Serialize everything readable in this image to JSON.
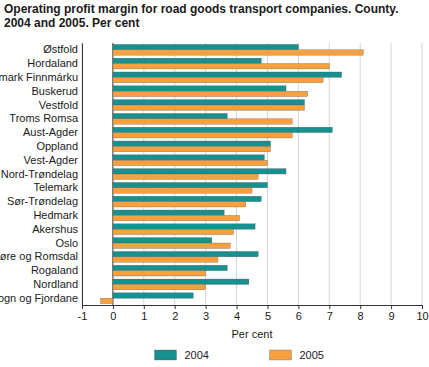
{
  "chart_data": {
    "type": "bar",
    "orientation": "horizontal",
    "title": "Operating profit margin for road goods transport companies. County. 2004 and 2005. Per cent",
    "x_label": "Per cent",
    "categories": [
      "Østfold",
      "Hordaland",
      "Finnmark Finnmárku",
      "Buskerud",
      "Vestfold",
      "Troms Romsa",
      "Aust-Agder",
      "Oppland",
      "Vest-Agder",
      "Nord-Trøndelag",
      "Telemark",
      "Sør-Trøndelag",
      "Hedmark",
      "Akershus",
      "Oslo",
      "Møre og Romsdal",
      "Rogaland",
      "Nordland",
      "Sogn og Fjordane"
    ],
    "series": [
      {
        "name": "2004",
        "color": "#16918f",
        "values": [
          6.0,
          4.8,
          7.4,
          5.6,
          6.2,
          3.7,
          7.1,
          5.1,
          4.9,
          5.6,
          5.0,
          4.8,
          3.6,
          4.6,
          3.2,
          4.7,
          3.7,
          4.4,
          2.6
        ]
      },
      {
        "name": "2005",
        "color": "#f7a040",
        "values": [
          8.1,
          7.0,
          6.8,
          6.3,
          6.2,
          5.8,
          5.8,
          5.1,
          5.0,
          4.7,
          4.5,
          4.3,
          4.1,
          3.9,
          3.8,
          3.4,
          3.0,
          3.0,
          -0.4
        ]
      }
    ],
    "xlim": [
      -1,
      10
    ],
    "xticks": [
      -1,
      0,
      1,
      2,
      3,
      4,
      5,
      6,
      7,
      8,
      9,
      10
    ],
    "grid": true,
    "legend": "bottom"
  }
}
